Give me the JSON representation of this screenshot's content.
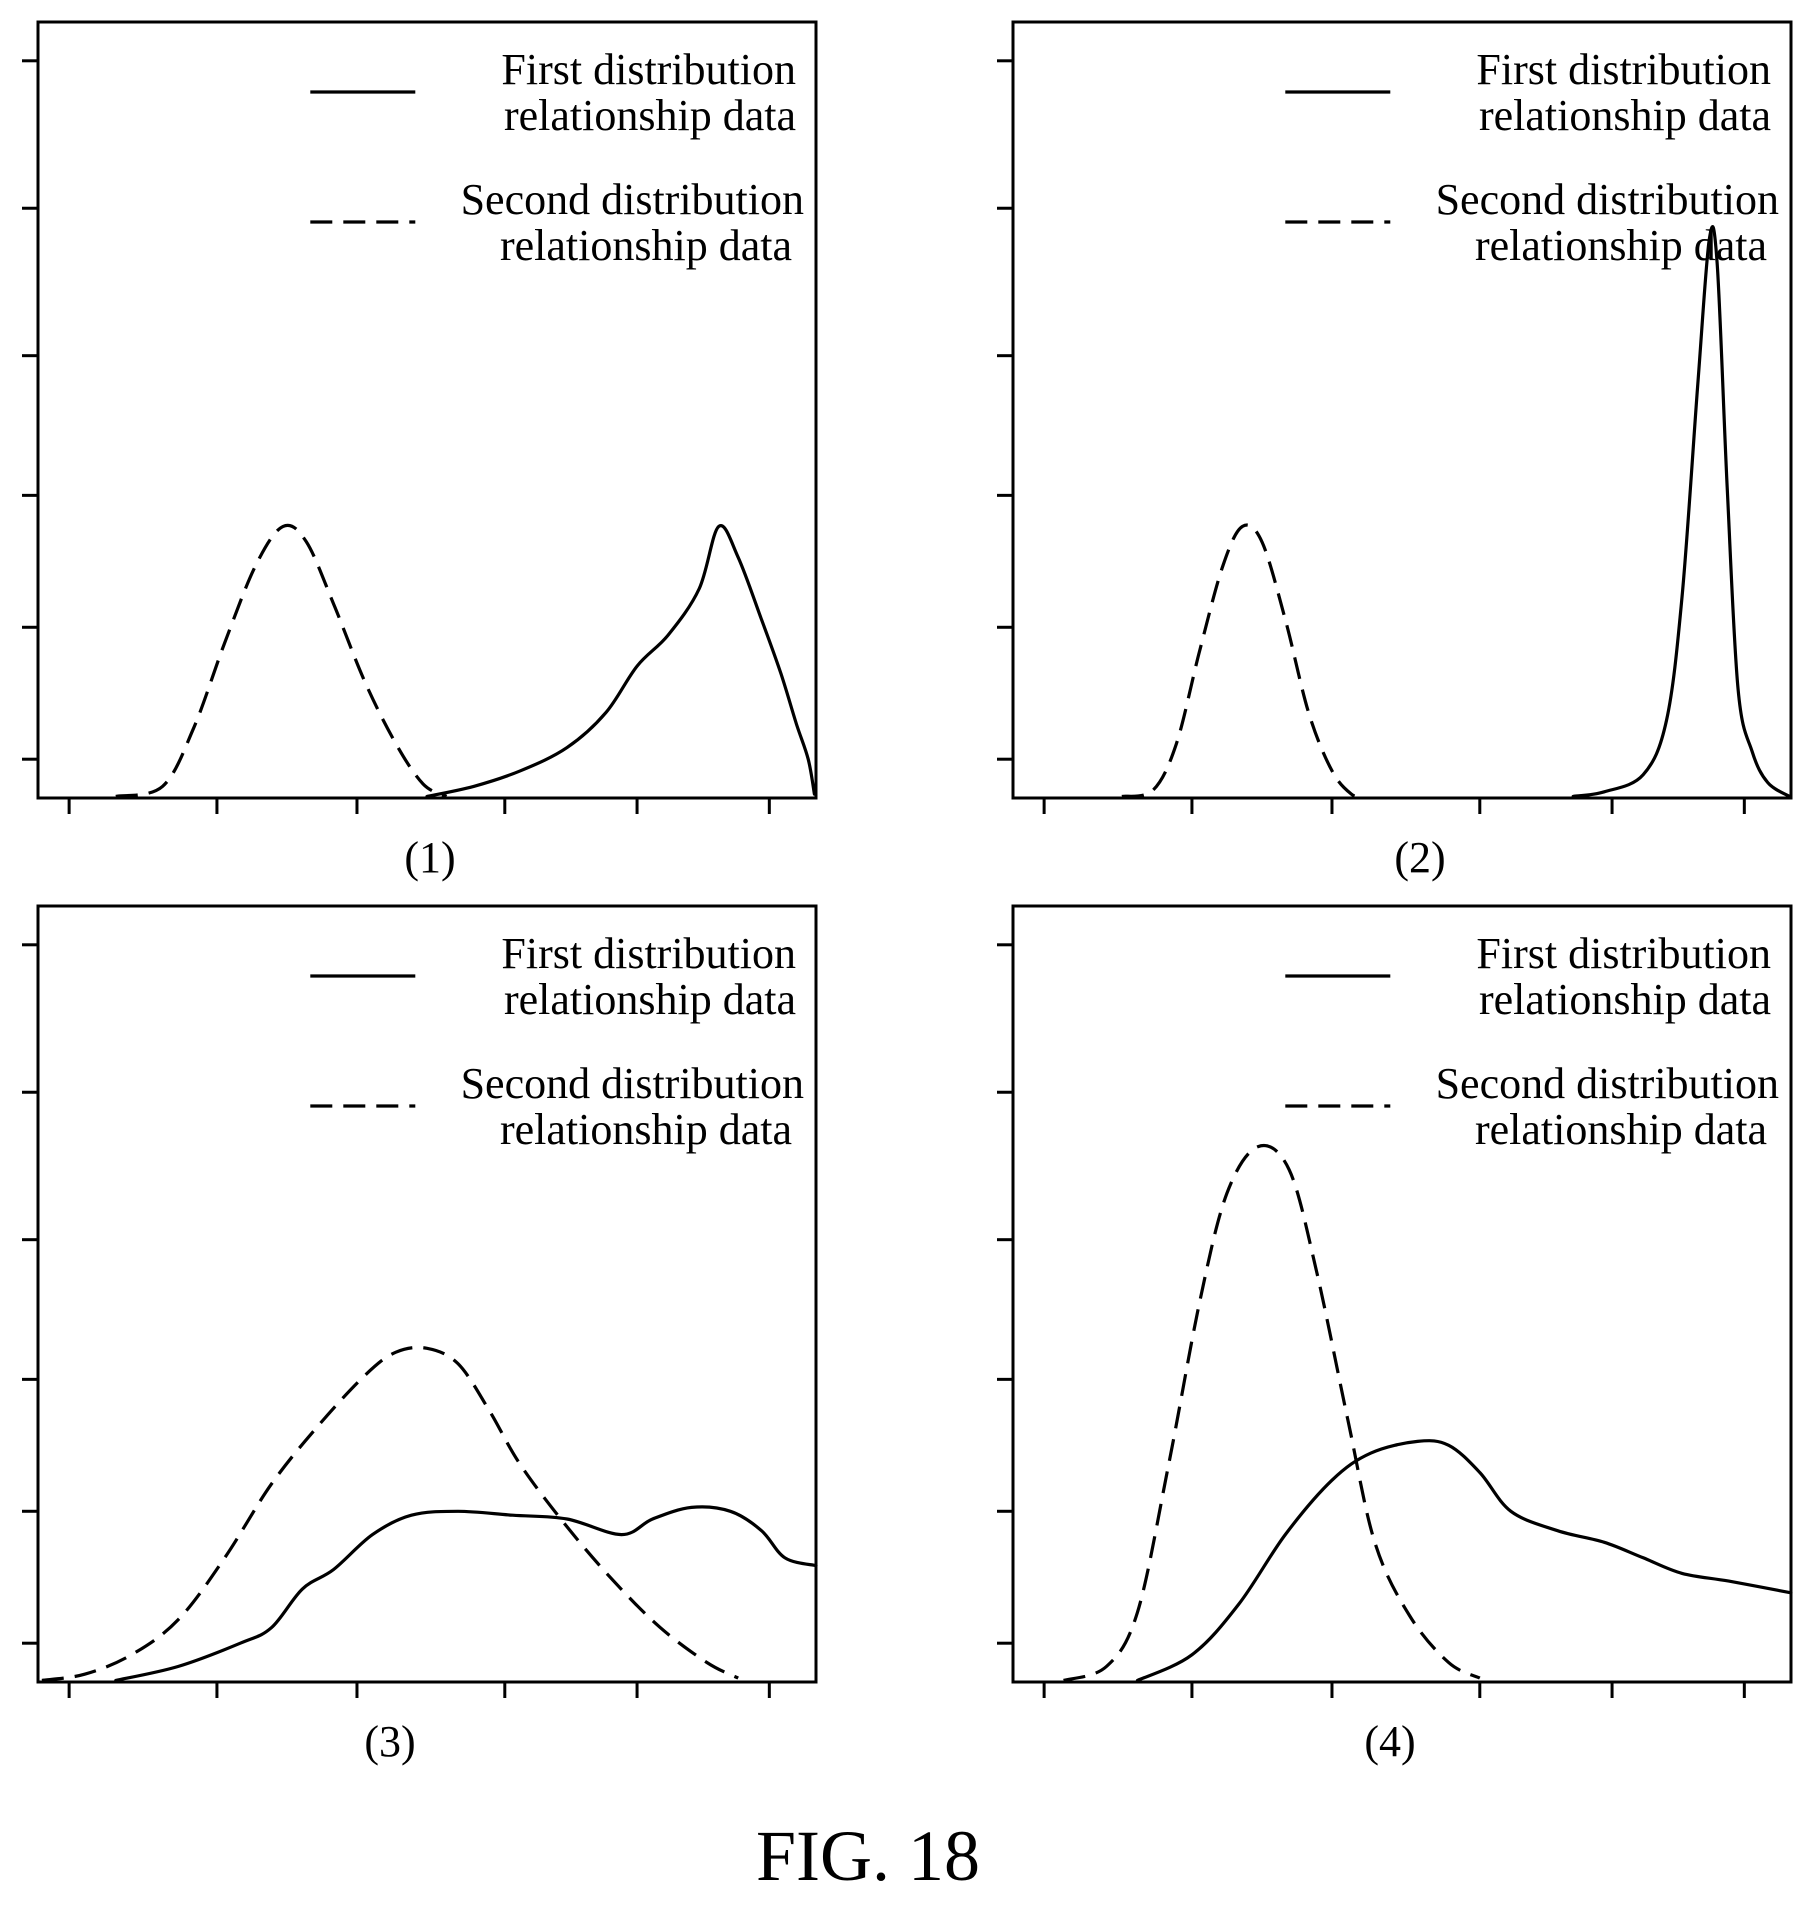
{
  "figure": {
    "caption": "FIG. 18"
  },
  "legend": {
    "first_line1": "First distribution",
    "first_line2": "relationship data",
    "second_line1": "Second distribution",
    "second_line2": "relationship data"
  },
  "chart_data": [
    {
      "type": "line",
      "panel_label": "(1)",
      "xlabel": "",
      "ylabel": "",
      "xlim": [
        0,
        10
      ],
      "ylim": [
        0,
        10
      ],
      "grid": false,
      "legend_position": "top-right",
      "x_ticks": 6,
      "y_ticks": 6,
      "series": [
        {
          "name": "First distribution relationship data",
          "style": "solid",
          "points": [
            [
              5.0,
              0.02
            ],
            [
              5.6,
              0.15
            ],
            [
              6.2,
              0.35
            ],
            [
              6.8,
              0.65
            ],
            [
              7.3,
              1.1
            ],
            [
              7.7,
              1.7
            ],
            [
              8.1,
              2.1
            ],
            [
              8.5,
              2.7
            ],
            [
              8.75,
              3.5
            ],
            [
              9.0,
              3.1
            ],
            [
              9.3,
              2.3
            ],
            [
              9.55,
              1.6
            ],
            [
              9.75,
              0.95
            ],
            [
              9.9,
              0.5
            ],
            [
              9.98,
              0.05
            ]
          ]
        },
        {
          "name": "Second distribution relationship data",
          "style": "dashed",
          "points": [
            [
              1.0,
              0.02
            ],
            [
              1.6,
              0.15
            ],
            [
              2.0,
              0.9
            ],
            [
              2.4,
              2.0
            ],
            [
              2.8,
              3.0
            ],
            [
              3.15,
              3.5
            ],
            [
              3.45,
              3.3
            ],
            [
              3.8,
              2.5
            ],
            [
              4.2,
              1.5
            ],
            [
              4.6,
              0.7
            ],
            [
              4.95,
              0.18
            ],
            [
              5.25,
              0.02
            ]
          ]
        }
      ]
    },
    {
      "type": "line",
      "panel_label": "(2)",
      "xlabel": "",
      "ylabel": "",
      "xlim": [
        0,
        10
      ],
      "ylim": [
        0,
        10
      ],
      "grid": false,
      "legend_position": "top-right",
      "x_ticks": 6,
      "y_ticks": 6,
      "series": [
        {
          "name": "First distribution relationship data",
          "style": "solid",
          "points": [
            [
              7.2,
              0.02
            ],
            [
              7.6,
              0.08
            ],
            [
              8.1,
              0.3
            ],
            [
              8.4,
              1.0
            ],
            [
              8.6,
              2.6
            ],
            [
              8.8,
              5.3
            ],
            [
              8.95,
              7.2
            ],
            [
              9.05,
              6.9
            ],
            [
              9.18,
              4.0
            ],
            [
              9.32,
              1.4
            ],
            [
              9.5,
              0.6
            ],
            [
              9.7,
              0.2
            ],
            [
              9.98,
              0.02
            ]
          ]
        },
        {
          "name": "Second distribution relationship data",
          "style": "dashed",
          "points": [
            [
              1.4,
              0.02
            ],
            [
              1.8,
              0.1
            ],
            [
              2.1,
              0.7
            ],
            [
              2.4,
              1.9
            ],
            [
              2.7,
              3.0
            ],
            [
              2.95,
              3.5
            ],
            [
              3.2,
              3.3
            ],
            [
              3.5,
              2.3
            ],
            [
              3.8,
              1.1
            ],
            [
              4.1,
              0.35
            ],
            [
              4.35,
              0.05
            ],
            [
              4.5,
              0.02
            ]
          ]
        }
      ]
    },
    {
      "type": "line",
      "panel_label": "(3)",
      "xlabel": "",
      "ylabel": "",
      "xlim": [
        0,
        10
      ],
      "ylim": [
        0,
        10
      ],
      "grid": false,
      "legend_position": "top-right",
      "x_ticks": 6,
      "y_ticks": 6,
      "series": [
        {
          "name": "First distribution relationship data",
          "style": "solid",
          "points": [
            [
              1.0,
              0.02
            ],
            [
              1.8,
              0.2
            ],
            [
              2.6,
              0.5
            ],
            [
              3.0,
              0.7
            ],
            [
              3.4,
              1.2
            ],
            [
              3.8,
              1.45
            ],
            [
              4.3,
              1.9
            ],
            [
              4.8,
              2.15
            ],
            [
              5.4,
              2.2
            ],
            [
              6.1,
              2.15
            ],
            [
              6.8,
              2.1
            ],
            [
              7.5,
              1.9
            ],
            [
              7.9,
              2.1
            ],
            [
              8.4,
              2.25
            ],
            [
              8.9,
              2.2
            ],
            [
              9.3,
              1.95
            ],
            [
              9.6,
              1.6
            ],
            [
              10.0,
              1.5
            ]
          ]
        },
        {
          "name": "Second distribution relationship data",
          "style": "dashed",
          "points": [
            [
              0.05,
              0.02
            ],
            [
              0.6,
              0.1
            ],
            [
              1.2,
              0.35
            ],
            [
              1.8,
              0.8
            ],
            [
              2.4,
              1.6
            ],
            [
              3.0,
              2.55
            ],
            [
              3.6,
              3.3
            ],
            [
              4.2,
              3.95
            ],
            [
              4.6,
              4.25
            ],
            [
              5.0,
              4.3
            ],
            [
              5.4,
              4.1
            ],
            [
              5.8,
              3.5
            ],
            [
              6.2,
              2.8
            ],
            [
              6.8,
              2.0
            ],
            [
              7.4,
              1.3
            ],
            [
              8.0,
              0.7
            ],
            [
              8.6,
              0.25
            ],
            [
              9.0,
              0.05
            ]
          ]
        }
      ]
    },
    {
      "type": "line",
      "panel_label": "(4)",
      "xlabel": "",
      "ylabel": "",
      "xlim": [
        0,
        10
      ],
      "ylim": [
        0,
        10
      ],
      "grid": false,
      "legend_position": "top-right",
      "x_ticks": 6,
      "y_ticks": 6,
      "series": [
        {
          "name": "First distribution relationship data",
          "style": "solid",
          "points": [
            [
              1.6,
              0.02
            ],
            [
              2.3,
              0.35
            ],
            [
              2.9,
              1.0
            ],
            [
              3.5,
              1.9
            ],
            [
              4.1,
              2.6
            ],
            [
              4.6,
              2.95
            ],
            [
              5.2,
              3.1
            ],
            [
              5.6,
              3.05
            ],
            [
              6.0,
              2.7
            ],
            [
              6.4,
              2.2
            ],
            [
              7.0,
              1.95
            ],
            [
              7.6,
              1.8
            ],
            [
              8.1,
              1.6
            ],
            [
              8.6,
              1.4
            ],
            [
              9.2,
              1.3
            ],
            [
              10.0,
              1.15
            ]
          ]
        },
        {
          "name": "Second distribution relationship data",
          "style": "dashed",
          "points": [
            [
              0.65,
              0.02
            ],
            [
              1.2,
              0.2
            ],
            [
              1.6,
              0.9
            ],
            [
              2.0,
              2.8
            ],
            [
              2.4,
              4.9
            ],
            [
              2.75,
              6.3
            ],
            [
              3.15,
              6.9
            ],
            [
              3.55,
              6.6
            ],
            [
              3.9,
              5.3
            ],
            [
              4.3,
              3.4
            ],
            [
              4.65,
              1.8
            ],
            [
              5.1,
              0.85
            ],
            [
              5.6,
              0.25
            ],
            [
              6.0,
              0.05
            ]
          ]
        }
      ]
    }
  ]
}
